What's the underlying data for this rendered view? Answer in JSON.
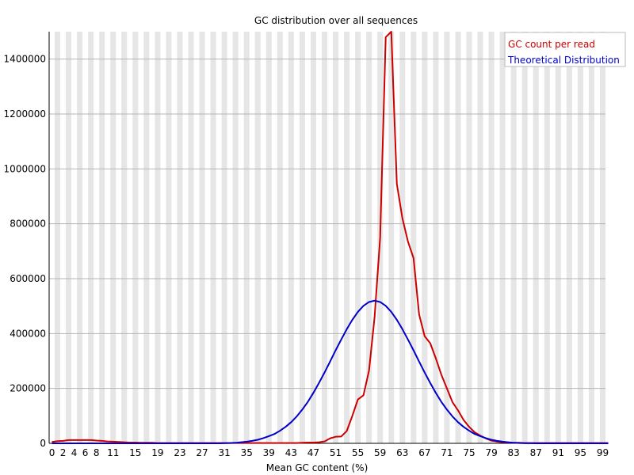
{
  "chart_data": {
    "type": "line",
    "title": "GC distribution over all sequences",
    "xlabel": "Mean GC content (%)",
    "ylabel": "",
    "xlim": [
      0,
      100
    ],
    "ylim": [
      0,
      1500000
    ],
    "grid": "vertical bands",
    "legend_position": "top-right",
    "x_ticks": [
      0,
      2,
      4,
      6,
      8,
      11,
      15,
      19,
      23,
      27,
      31,
      35,
      39,
      43,
      47,
      51,
      55,
      59,
      63,
      67,
      71,
      75,
      79,
      83,
      87,
      91,
      95,
      99
    ],
    "y_ticks": [
      0,
      200000,
      400000,
      600000,
      800000,
      1000000,
      1200000,
      1400000
    ],
    "series": [
      {
        "name": "GC count per read",
        "color": "#cc0000",
        "points": [
          [
            0,
            5000
          ],
          [
            1,
            8000
          ],
          [
            2,
            9000
          ],
          [
            3,
            12000
          ],
          [
            4,
            12000
          ],
          [
            5,
            12000
          ],
          [
            6,
            12000
          ],
          [
            7,
            12000
          ],
          [
            8,
            10000
          ],
          [
            9,
            9000
          ],
          [
            10,
            7000
          ],
          [
            11,
            6000
          ],
          [
            12,
            5000
          ],
          [
            13,
            4000
          ],
          [
            14,
            3000
          ],
          [
            15,
            3000
          ],
          [
            16,
            2000
          ],
          [
            17,
            2000
          ],
          [
            18,
            2000
          ],
          [
            19,
            1000
          ],
          [
            20,
            1000
          ],
          [
            21,
            1000
          ],
          [
            22,
            1000
          ],
          [
            23,
            1000
          ],
          [
            24,
            1000
          ],
          [
            25,
            1000
          ],
          [
            26,
            1000
          ],
          [
            27,
            1000
          ],
          [
            28,
            1000
          ],
          [
            29,
            1000
          ],
          [
            30,
            1000
          ],
          [
            31,
            1000
          ],
          [
            32,
            1000
          ],
          [
            33,
            1000
          ],
          [
            34,
            1000
          ],
          [
            35,
            1000
          ],
          [
            36,
            1000
          ],
          [
            37,
            1000
          ],
          [
            38,
            1000
          ],
          [
            39,
            1000
          ],
          [
            40,
            1000
          ],
          [
            41,
            1000
          ],
          [
            42,
            1000
          ],
          [
            43,
            1000
          ],
          [
            44,
            1000
          ],
          [
            45,
            2000
          ],
          [
            46,
            3000
          ],
          [
            47,
            3000
          ],
          [
            48,
            4000
          ],
          [
            49,
            7000
          ],
          [
            50,
            18000
          ],
          [
            51,
            24000
          ],
          [
            52,
            25000
          ],
          [
            53,
            45000
          ],
          [
            54,
            100000
          ],
          [
            55,
            160000
          ],
          [
            56,
            175000
          ],
          [
            57,
            265000
          ],
          [
            58,
            460000
          ],
          [
            59,
            750000
          ],
          [
            60,
            1480000
          ],
          [
            61,
            1500000
          ],
          [
            62,
            945000
          ],
          [
            63,
            820000
          ],
          [
            64,
            735000
          ],
          [
            65,
            675000
          ],
          [
            66,
            470000
          ],
          [
            67,
            390000
          ],
          [
            68,
            365000
          ],
          [
            69,
            310000
          ],
          [
            70,
            250000
          ],
          [
            71,
            200000
          ],
          [
            72,
            150000
          ],
          [
            73,
            120000
          ],
          [
            74,
            85000
          ],
          [
            75,
            60000
          ],
          [
            76,
            40000
          ],
          [
            77,
            28000
          ],
          [
            78,
            18000
          ],
          [
            79,
            10000
          ],
          [
            80,
            6000
          ],
          [
            81,
            4000
          ],
          [
            82,
            3000
          ],
          [
            83,
            2000
          ],
          [
            84,
            2000
          ],
          [
            85,
            1000
          ],
          [
            86,
            1000
          ],
          [
            87,
            1000
          ],
          [
            88,
            1000
          ],
          [
            89,
            1000
          ],
          [
            90,
            1000
          ],
          [
            91,
            1000
          ],
          [
            92,
            1000
          ],
          [
            93,
            1000
          ],
          [
            94,
            1000
          ],
          [
            95,
            1000
          ],
          [
            96,
            1000
          ],
          [
            97,
            1000
          ],
          [
            98,
            1000
          ],
          [
            99,
            1000
          ],
          [
            100,
            1000
          ]
        ]
      },
      {
        "name": "Theoretical Distribution",
        "color": "#0000cc",
        "points": [
          [
            0,
            0
          ],
          [
            2,
            0
          ],
          [
            4,
            0
          ],
          [
            6,
            0
          ],
          [
            8,
            0
          ],
          [
            10,
            0
          ],
          [
            12,
            0
          ],
          [
            14,
            0
          ],
          [
            16,
            0
          ],
          [
            18,
            0
          ],
          [
            20,
            0
          ],
          [
            22,
            0
          ],
          [
            24,
            0
          ],
          [
            26,
            0
          ],
          [
            28,
            0
          ],
          [
            30,
            0
          ],
          [
            32,
            1000
          ],
          [
            33,
            2000
          ],
          [
            34,
            4000
          ],
          [
            35,
            6000
          ],
          [
            36,
            9000
          ],
          [
            37,
            13000
          ],
          [
            38,
            19000
          ],
          [
            39,
            26000
          ],
          [
            40,
            34000
          ],
          [
            41,
            46000
          ],
          [
            42,
            60000
          ],
          [
            43,
            77000
          ],
          [
            44,
            98000
          ],
          [
            45,
            123000
          ],
          [
            46,
            151000
          ],
          [
            47,
            184000
          ],
          [
            48,
            220000
          ],
          [
            49,
            258000
          ],
          [
            50,
            298000
          ],
          [
            51,
            339000
          ],
          [
            52,
            378000
          ],
          [
            53,
            416000
          ],
          [
            54,
            450000
          ],
          [
            55,
            479000
          ],
          [
            56,
            501000
          ],
          [
            57,
            515000
          ],
          [
            58,
            520000
          ],
          [
            59,
            515000
          ],
          [
            60,
            501000
          ],
          [
            61,
            479000
          ],
          [
            62,
            450000
          ],
          [
            63,
            416000
          ],
          [
            64,
            378000
          ],
          [
            65,
            339000
          ],
          [
            66,
            298000
          ],
          [
            67,
            258000
          ],
          [
            68,
            220000
          ],
          [
            69,
            184000
          ],
          [
            70,
            151000
          ],
          [
            71,
            123000
          ],
          [
            72,
            98000
          ],
          [
            73,
            77000
          ],
          [
            74,
            60000
          ],
          [
            75,
            46000
          ],
          [
            76,
            34000
          ],
          [
            77,
            26000
          ],
          [
            78,
            19000
          ],
          [
            79,
            13000
          ],
          [
            80,
            9000
          ],
          [
            81,
            6000
          ],
          [
            82,
            4000
          ],
          [
            83,
            2000
          ],
          [
            84,
            1000
          ],
          [
            85,
            500
          ],
          [
            86,
            200
          ],
          [
            87,
            0
          ],
          [
            90,
            0
          ],
          [
            95,
            0
          ],
          [
            100,
            0
          ]
        ]
      }
    ]
  }
}
